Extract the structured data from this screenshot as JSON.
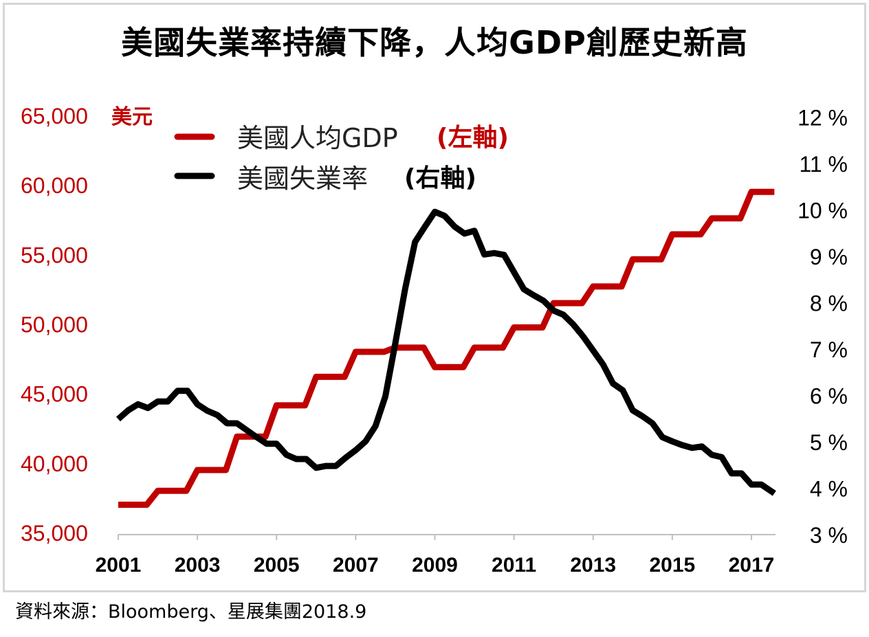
{
  "chart_data": {
    "type": "line",
    "title": "美國失業率持續下降，人均GDP創歷史新高",
    "source": "資料來源：Bloomberg、星展集團2018.9",
    "left_unit": "美元",
    "xlim": [
      2001,
      2017.6
    ],
    "x_ticks": [
      "2001",
      "2003",
      "2005",
      "2007",
      "2009",
      "2011",
      "2013",
      "2015",
      "2017"
    ],
    "y_left": {
      "range": [
        35000,
        65000
      ],
      "ticks": [
        "35,000",
        "40,000",
        "45,000",
        "50,000",
        "55,000",
        "60,000",
        "65,000"
      ],
      "color": "#c00000"
    },
    "y_right": {
      "range": [
        3,
        12
      ],
      "ticks": [
        "3 %",
        "4 %",
        "5 %",
        "6 %",
        "7 %",
        "8 %",
        "9 %",
        "10 %",
        "11 %",
        "12 %"
      ]
    },
    "grid": false,
    "legend_position": "top-left",
    "series": [
      {
        "name": "美國人均GDP",
        "axis_label": "(左軸)",
        "axis": "left",
        "color": "#c00000",
        "step": true,
        "x": [
          2001,
          2002,
          2003,
          2004,
          2005,
          2006,
          2007,
          2008,
          2009,
          2010,
          2011,
          2012,
          2013,
          2014,
          2015,
          2016,
          2017
        ],
        "values": [
          37000,
          38000,
          39500,
          41900,
          44150,
          46200,
          48000,
          48300,
          46900,
          48300,
          49750,
          51500,
          52700,
          54650,
          56450,
          57600,
          59500
        ]
      },
      {
        "name": "美國失業率",
        "axis_label": "(右軸)",
        "axis": "right",
        "color": "#000000",
        "x": [
          2001.0,
          2001.25,
          2001.5,
          2001.75,
          2002.0,
          2002.25,
          2002.5,
          2002.75,
          2003.0,
          2003.25,
          2003.5,
          2003.75,
          2004.0,
          2004.25,
          2004.5,
          2004.75,
          2005.0,
          2005.25,
          2005.5,
          2005.75,
          2006.0,
          2006.25,
          2006.5,
          2006.75,
          2007.0,
          2007.25,
          2007.5,
          2007.75,
          2008.0,
          2008.25,
          2008.5,
          2008.75,
          2009.0,
          2009.25,
          2009.5,
          2009.75,
          2010.0,
          2010.25,
          2010.5,
          2010.75,
          2011.0,
          2011.25,
          2011.5,
          2011.75,
          2012.0,
          2012.25,
          2012.5,
          2012.75,
          2013.0,
          2013.25,
          2013.5,
          2013.75,
          2014.0,
          2014.25,
          2014.5,
          2014.75,
          2015.0,
          2015.25,
          2015.5,
          2015.75,
          2016.0,
          2016.25,
          2016.5,
          2016.75,
          2017.0,
          2017.25,
          2017.58
        ],
        "values": [
          5.49,
          5.68,
          5.81,
          5.73,
          5.87,
          5.87,
          6.1,
          6.1,
          5.81,
          5.67,
          5.58,
          5.4,
          5.4,
          5.25,
          5.1,
          4.96,
          4.96,
          4.72,
          4.63,
          4.63,
          4.44,
          4.48,
          4.48,
          4.66,
          4.82,
          5.01,
          5.34,
          5.98,
          7.12,
          8.3,
          9.31,
          9.64,
          9.96,
          9.87,
          9.64,
          9.49,
          9.55,
          9.04,
          9.07,
          9.03,
          8.66,
          8.29,
          8.16,
          8.04,
          7.83,
          7.74,
          7.53,
          7.27,
          6.97,
          6.67,
          6.26,
          6.11,
          5.68,
          5.55,
          5.4,
          5.1,
          5.01,
          4.93,
          4.87,
          4.9,
          4.72,
          4.67,
          4.32,
          4.32,
          4.08,
          4.08,
          3.89
        ]
      }
    ]
  }
}
